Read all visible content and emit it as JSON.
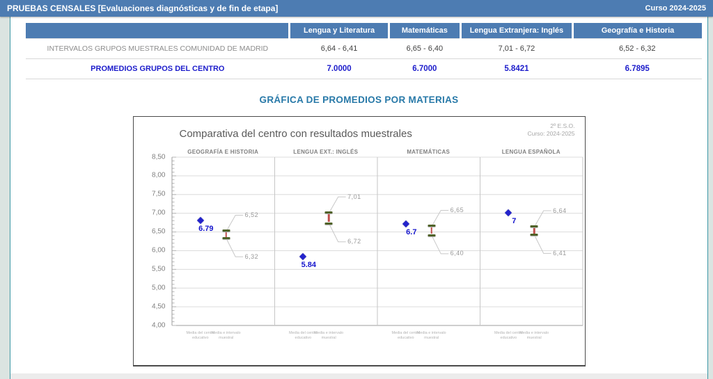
{
  "header": {
    "title": "PRUEBAS CENSALES [Evaluaciones diagnósticas y de fin de etapa]",
    "course": "Curso 2024-2025"
  },
  "table": {
    "columns": [
      "Lengua y Literatura",
      "Matemáticas",
      "Lengua Extranjera: Inglés",
      "Geografía e Historia"
    ],
    "rows": [
      {
        "label": "INTERVALOS GRUPOS MUESTRALES COMUNIDAD DE MADRID",
        "values": [
          "6,64 - 6,41",
          "6,65 - 6,40",
          "7,01 - 6,72",
          "6,52 - 6,32"
        ]
      },
      {
        "label": "PROMEDIOS GRUPOS DEL CENTRO",
        "values": [
          "7.0000",
          "6.7000",
          "5.8421",
          "6.7895"
        ]
      }
    ]
  },
  "section_title": "GRÁFICA DE PROMEDIOS POR MATERIAS",
  "chart_data": {
    "type": "scatter",
    "title": "Comparativa del centro con resultados muestrales",
    "annotations": [
      "2º E.S.O.",
      "Curso: 2024-2025"
    ],
    "ylim": [
      4.0,
      8.5
    ],
    "ytick_step": 0.5,
    "yticks": [
      "8,50",
      "8,00",
      "7,50",
      "7,00",
      "6,50",
      "6,00",
      "5,50",
      "5,00",
      "4,50",
      "4,00"
    ],
    "x_categories": [
      "Media del centro educativo",
      "Media e intervalo muestral"
    ],
    "grid": true,
    "panels": [
      {
        "subject": "GEOGRAFÍA E HISTORIA",
        "center_mean": 6.79,
        "center_label": "6.79",
        "interval_high": 6.52,
        "interval_low": 6.32,
        "interval_high_label": "6,52",
        "interval_low_label": "6,32"
      },
      {
        "subject": "LENGUA EXT.: INGLÉS",
        "center_mean": 5.84,
        "center_label": "5.84",
        "interval_high": 7.01,
        "interval_low": 6.72,
        "interval_high_label": "7,01",
        "interval_low_label": "6,72"
      },
      {
        "subject": "MATEMÁTICAS",
        "center_mean": 6.7,
        "center_label": "6.7",
        "interval_high": 6.65,
        "interval_low": 6.4,
        "interval_high_label": "6,65",
        "interval_low_label": "6,40"
      },
      {
        "subject": "LENGUA ESPAÑOLA",
        "center_mean": 7,
        "center_label": "7",
        "interval_high": 6.64,
        "interval_low": 6.41,
        "interval_high_label": "6,64",
        "interval_low_label": "6,41"
      }
    ],
    "colors": {
      "center_point": "#2323cc",
      "center_label": "#1414cc",
      "interval_cap": "#4f6228",
      "interval_line": "#c0504d",
      "leader_line": "#c8c8c8",
      "gridline": "#dcdcdc",
      "axis": "#9c9c9c"
    }
  }
}
